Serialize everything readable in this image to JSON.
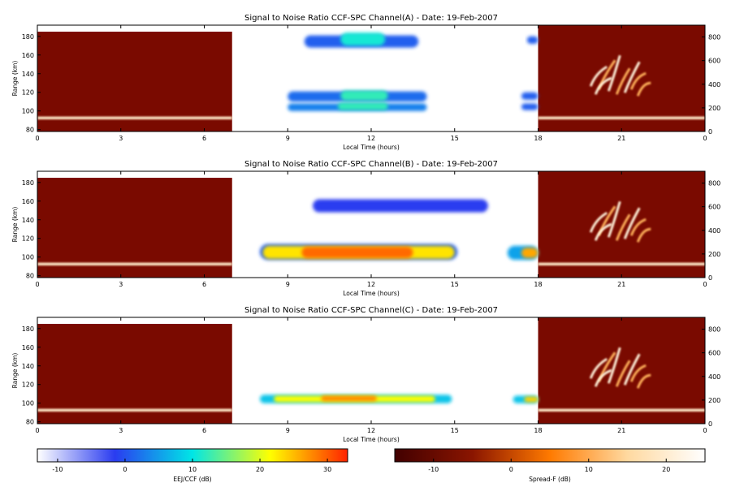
{
  "chart_data": {
    "type": "heatmap",
    "panels": [
      {
        "title": "Signal to Noise Ratio CCF-SPC Channel(A) - Date: 19-Feb-2007",
        "xlabel": "Local Time (hours)",
        "ylabel": "Range (km)",
        "eej_blobs": [
          {
            "t0": 9.6,
            "t1": 13.7,
            "r0": 168,
            "r1": 181,
            "level": 0.3
          },
          {
            "t0": 10.9,
            "t1": 12.5,
            "r0": 170,
            "r1": 184,
            "level": 0.52
          },
          {
            "t0": 9.0,
            "t1": 14.0,
            "r0": 110,
            "r1": 121,
            "level": 0.32
          },
          {
            "t0": 10.9,
            "t1": 12.6,
            "r0": 111,
            "r1": 122,
            "level": 0.55
          },
          {
            "t0": 9.0,
            "t1": 14.0,
            "r0": 100,
            "r1": 108,
            "level": 0.35
          },
          {
            "t0": 10.8,
            "t1": 12.6,
            "r0": 101,
            "r1": 109,
            "level": 0.55
          },
          {
            "t0": 17.6,
            "t1": 18.0,
            "r0": 172,
            "r1": 180,
            "level": 0.3
          },
          {
            "t0": 17.4,
            "t1": 18.0,
            "r0": 112,
            "r1": 120,
            "level": 0.3
          },
          {
            "t0": 17.4,
            "t1": 18.0,
            "r0": 101,
            "r1": 108,
            "level": 0.3
          }
        ]
      },
      {
        "title": "Signal to Noise Ratio CCF-SPC Channel(B) - Date: 19-Feb-2007",
        "xlabel": "Local Time (hours)",
        "ylabel": "Range (km)",
        "eej_blobs": [
          {
            "t0": 9.9,
            "t1": 16.2,
            "r0": 148,
            "r1": 162,
            "level": 0.25
          },
          {
            "t0": 8.0,
            "t1": 15.1,
            "r0": 97,
            "r1": 114,
            "level": 0.3
          },
          {
            "t0": 8.1,
            "t1": 15.0,
            "r0": 98,
            "r1": 112,
            "level": 0.78
          },
          {
            "t0": 9.5,
            "t1": 13.5,
            "r0": 99,
            "r1": 111,
            "level": 0.92
          },
          {
            "t0": 16.9,
            "t1": 18.0,
            "r0": 97,
            "r1": 112,
            "level": 0.4
          },
          {
            "t0": 17.4,
            "t1": 18.0,
            "r0": 99,
            "r1": 110,
            "level": 0.85
          }
        ]
      },
      {
        "title": "Signal to Noise Ratio CCF-SPC Channel(C) - Date: 19-Feb-2007",
        "xlabel": "Local Time (hours)",
        "ylabel": "Range (km)",
        "eej_blobs": [
          {
            "t0": 8.0,
            "t1": 14.9,
            "r0": 100,
            "r1": 109,
            "level": 0.45
          },
          {
            "t0": 8.5,
            "t1": 14.3,
            "r0": 101,
            "r1": 108,
            "level": 0.75
          },
          {
            "t0": 10.2,
            "t1": 12.2,
            "r0": 102,
            "r1": 108,
            "level": 0.88
          },
          {
            "t0": 17.1,
            "t1": 18.0,
            "r0": 100,
            "r1": 108,
            "level": 0.45
          },
          {
            "t0": 17.5,
            "t1": 18.0,
            "r0": 101,
            "r1": 107,
            "level": 0.8
          }
        ]
      }
    ],
    "x_axis": {
      "range": [
        0,
        24
      ],
      "tick_labels": [
        "0",
        "3",
        "6",
        "9",
        "12",
        "15",
        "18",
        "21",
        "0"
      ]
    },
    "y_axis_left": {
      "range": [
        78,
        192
      ],
      "tick_values": [
        80,
        100,
        120,
        140,
        160,
        180
      ],
      "tick_labels": [
        "80",
        "100",
        "120",
        "140",
        "160",
        "180"
      ]
    },
    "y_axis_right": {
      "range": [
        0,
        900
      ],
      "tick_values": [
        0,
        200,
        400,
        600,
        800
      ],
      "tick_labels": [
        "0",
        "200",
        "400",
        "600",
        "800"
      ]
    },
    "spread_f_windows": [
      {
        "t0": 0.0,
        "t1": 7.0,
        "range_top": 185,
        "side": "left"
      },
      {
        "t0": 18.0,
        "t1": 24.0,
        "range_top": 192,
        "side": "right"
      }
    ],
    "spread_f_echo_ranges": [
      {
        "r0": 91,
        "r1": 94
      }
    ],
    "colorbars": [
      {
        "label": "EEJ/CCF (dB)",
        "range": [
          -13,
          33
        ],
        "tick_labels": [
          "-10",
          "0",
          "10",
          "20",
          "30"
        ],
        "tick_values": [
          -10,
          0,
          10,
          20,
          30
        ],
        "colors": [
          "#ffffff",
          "#2a3cf0",
          "#00e6e6",
          "#ffff00",
          "#ff2200"
        ]
      },
      {
        "label": "Spread-F (dB)",
        "range": [
          -15,
          25
        ],
        "tick_labels": [
          "-10",
          "0",
          "10",
          "20"
        ],
        "tick_values": [
          -10,
          0,
          10,
          20
        ],
        "colors": [
          "#420000",
          "#8a1500",
          "#ff7a00",
          "#ffd9a0",
          "#ffffff"
        ]
      }
    ],
    "background_color": "#7a0a00"
  }
}
